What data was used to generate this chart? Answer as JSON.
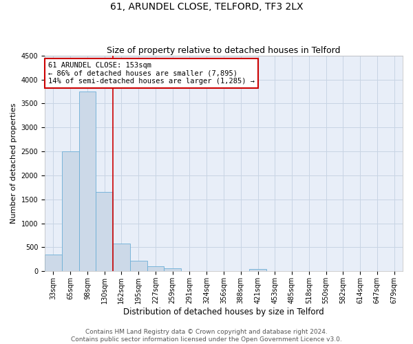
{
  "title": "61, ARUNDEL CLOSE, TELFORD, TF3 2LX",
  "subtitle": "Size of property relative to detached houses in Telford",
  "xlabel": "Distribution of detached houses by size in Telford",
  "ylabel": "Number of detached properties",
  "categories": [
    "33sqm",
    "65sqm",
    "98sqm",
    "130sqm",
    "162sqm",
    "195sqm",
    "227sqm",
    "259sqm",
    "291sqm",
    "324sqm",
    "356sqm",
    "388sqm",
    "421sqm",
    "453sqm",
    "485sqm",
    "518sqm",
    "550sqm",
    "582sqm",
    "614sqm",
    "647sqm",
    "679sqm"
  ],
  "values": [
    350,
    2500,
    3750,
    1650,
    575,
    225,
    100,
    60,
    5,
    2,
    1,
    1,
    50,
    2,
    1,
    1,
    1,
    1,
    1,
    1,
    1
  ],
  "bar_color": "#ccd9e8",
  "bar_edge_color": "#6baed6",
  "vline_x_index": 3.5,
  "vline_color": "#cc0000",
  "annotation_text": "61 ARUNDEL CLOSE: 153sqm\n← 86% of detached houses are smaller (7,895)\n14% of semi-detached houses are larger (1,285) →",
  "annotation_box_color": "#ffffff",
  "annotation_box_edge_color": "#cc0000",
  "ylim": [
    0,
    4500
  ],
  "yticks": [
    0,
    500,
    1000,
    1500,
    2000,
    2500,
    3000,
    3500,
    4000,
    4500
  ],
  "grid_color": "#c8d4e4",
  "background_color": "#e8eef8",
  "footer_line1": "Contains HM Land Registry data © Crown copyright and database right 2024.",
  "footer_line2": "Contains public sector information licensed under the Open Government Licence v3.0.",
  "title_fontsize": 10,
  "subtitle_fontsize": 9,
  "xlabel_fontsize": 8.5,
  "ylabel_fontsize": 8,
  "tick_fontsize": 7,
  "annotation_fontsize": 7.5,
  "footer_fontsize": 6.5
}
